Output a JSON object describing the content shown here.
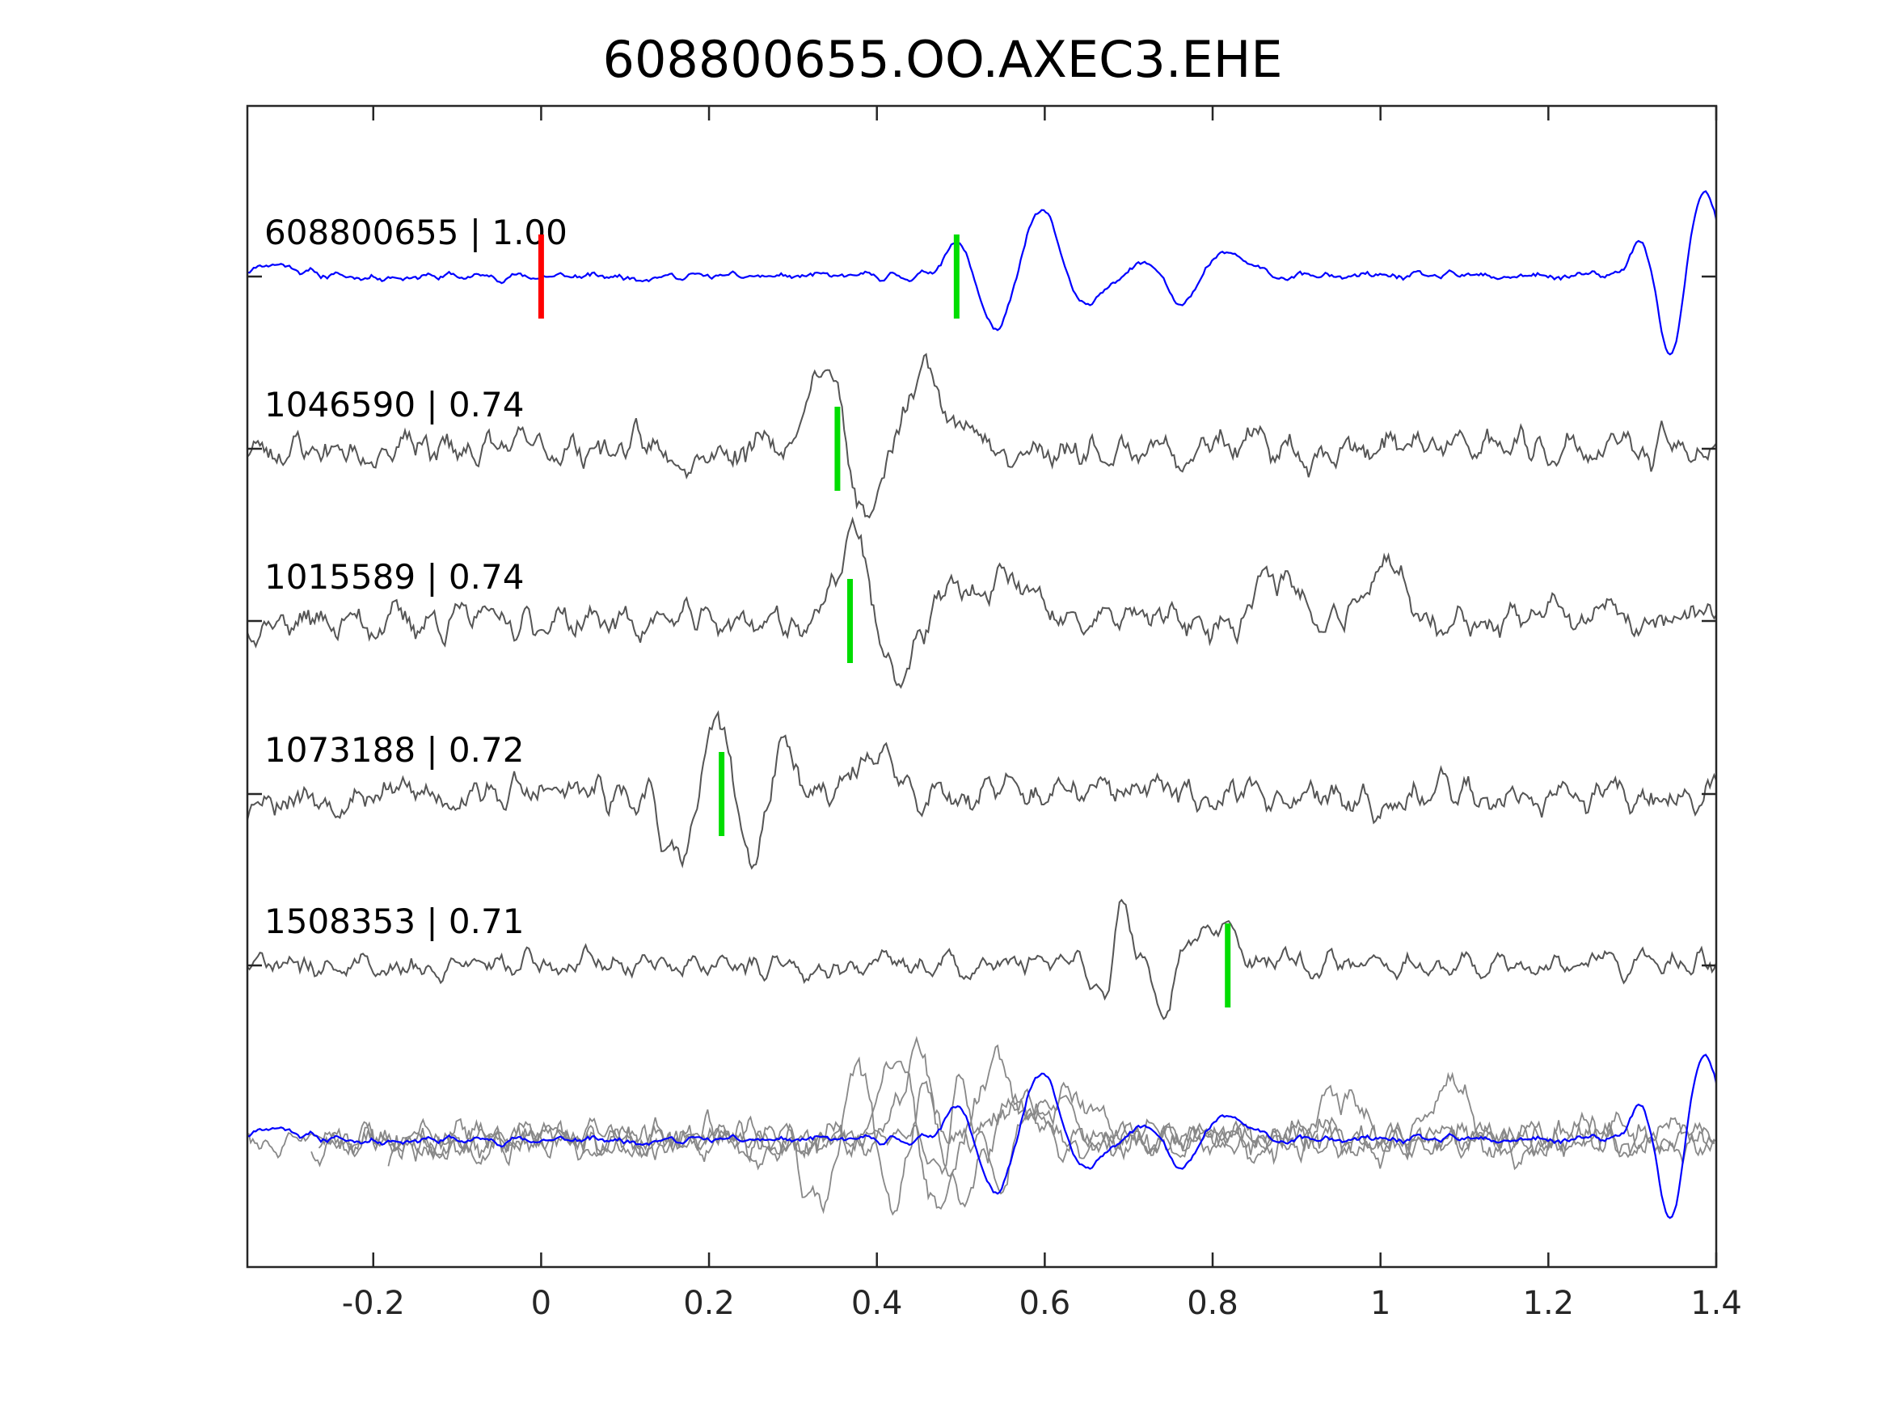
{
  "chart_data": {
    "type": "line",
    "title": "608800655.OO.AXEC3.EHE",
    "xlabel": "",
    "ylabel": "",
    "xlim": [
      -0.35,
      1.4
    ],
    "xticks": [
      "-0.2",
      "0",
      "0.2",
      "0.4",
      "0.6",
      "0.8",
      "1",
      "1.2",
      "1.4"
    ],
    "xtick_values": [
      -0.2,
      0,
      0.2,
      0.4,
      0.6,
      0.8,
      1.0,
      1.2,
      1.4
    ],
    "grid": false,
    "colors": {
      "template": "#0000ff",
      "match": "#555555",
      "stack": "#888888",
      "origin_marker": "#ff0000",
      "pick_marker": "#00dd00"
    },
    "origin_marker_time": 0.0,
    "traces": [
      {
        "name": "608800655 | 1.00",
        "color": "#0000ff",
        "pick_time": 0.495,
        "seed": 11,
        "features": [
          {
            "t": -0.32,
            "a": 0.15,
            "w": 0.03
          },
          {
            "t": 0.5,
            "a": 0.45,
            "w": 0.018
          },
          {
            "t": 0.545,
            "a": -0.75,
            "w": 0.022
          },
          {
            "t": 0.595,
            "a": 0.85,
            "w": 0.025
          },
          {
            "t": 0.645,
            "a": -0.45,
            "w": 0.022
          },
          {
            "t": 0.73,
            "a": 0.2,
            "w": 0.03
          },
          {
            "t": 0.765,
            "a": -0.45,
            "w": 0.018
          },
          {
            "t": 0.815,
            "a": 0.28,
            "w": 0.025
          },
          {
            "t": 1.315,
            "a": 0.5,
            "w": 0.015
          },
          {
            "t": 1.345,
            "a": -1.1,
            "w": 0.015
          },
          {
            "t": 1.385,
            "a": 1.0,
            "w": 0.018
          }
        ],
        "noise": 0.05
      },
      {
        "name": "1046590 | 0.74",
        "color": "#555555",
        "pick_time": 0.353,
        "seed": 23,
        "features": [
          {
            "t": 0.34,
            "a": 1.05,
            "w": 0.02
          },
          {
            "t": 0.385,
            "a": -0.85,
            "w": 0.018
          },
          {
            "t": 0.46,
            "a": 0.95,
            "w": 0.02
          },
          {
            "t": 0.52,
            "a": 0.3,
            "w": 0.025
          },
          {
            "t": 0.55,
            "a": -0.3,
            "w": 0.02
          }
        ],
        "noise": 0.22
      },
      {
        "name": "1015589 | 0.74",
        "color": "#555555",
        "pick_time": 0.368,
        "seed": 37,
        "features": [
          {
            "t": 0.375,
            "a": 1.1,
            "w": 0.018
          },
          {
            "t": 0.42,
            "a": -0.75,
            "w": 0.02
          },
          {
            "t": 0.49,
            "a": 0.45,
            "w": 0.018
          },
          {
            "t": 0.555,
            "a": 0.5,
            "w": 0.022
          },
          {
            "t": 0.88,
            "a": 0.55,
            "w": 0.025
          },
          {
            "t": 1.0,
            "a": 0.55,
            "w": 0.03
          }
        ],
        "noise": 0.22
      },
      {
        "name": "1073188 | 0.72",
        "color": "#555555",
        "pick_time": 0.215,
        "seed": 53,
        "features": [
          {
            "t": 0.165,
            "a": -0.95,
            "w": 0.018
          },
          {
            "t": 0.21,
            "a": 1.05,
            "w": 0.018
          },
          {
            "t": 0.25,
            "a": -0.95,
            "w": 0.018
          },
          {
            "t": 0.285,
            "a": 0.6,
            "w": 0.018
          },
          {
            "t": 0.4,
            "a": 0.5,
            "w": 0.022
          }
        ],
        "noise": 0.22
      },
      {
        "name": "1508353 | 0.71",
        "color": "#555555",
        "pick_time": 0.818,
        "seed": 71,
        "features": [
          {
            "t": 0.675,
            "a": -0.7,
            "w": 0.01
          },
          {
            "t": 0.69,
            "a": 1.05,
            "w": 0.01
          },
          {
            "t": 0.745,
            "a": -0.6,
            "w": 0.012
          },
          {
            "t": 0.77,
            "a": 0.5,
            "w": 0.012
          },
          {
            "t": 0.81,
            "a": 0.55,
            "w": 0.012
          }
        ],
        "noise": 0.16
      }
    ],
    "stack": {
      "description_hidden": true,
      "overlay_row": 5
    }
  }
}
